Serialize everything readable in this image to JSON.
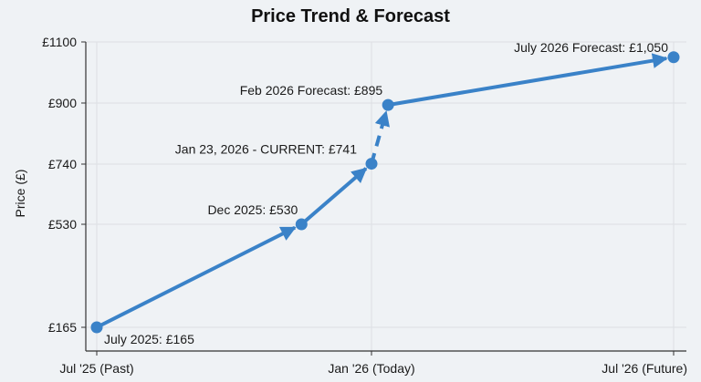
{
  "chart_data": {
    "type": "line",
    "title": "Price Trend & Forecast",
    "xlabel": "",
    "ylabel": "Price (£)",
    "x_ticks": [
      {
        "x": "2025-07",
        "label": "Jul '25 (Past)"
      },
      {
        "x": "2026-01-23",
        "label": "Jan '26 (Today)"
      },
      {
        "x": "2026-07",
        "label": "Jul '26 (Future)"
      }
    ],
    "y_ticks": [
      {
        "y": 165,
        "label": "£165"
      },
      {
        "y": 530,
        "label": "£530"
      },
      {
        "y": 740,
        "label": "£740"
      },
      {
        "y": 900,
        "label": "£900"
      },
      {
        "y": 1100,
        "label": "£1100"
      }
    ],
    "grid": true,
    "color": "#3a82c8",
    "points": [
      {
        "x": "2025-07",
        "y": 165,
        "label": "July 2025: £165",
        "kind": "actual"
      },
      {
        "x": "2025-12",
        "y": 530,
        "label": "Dec 2025: £530",
        "kind": "actual"
      },
      {
        "x": "2026-01-23",
        "y": 741,
        "label": "Jan 23, 2026 - CURRENT: £741",
        "kind": "actual"
      },
      {
        "x": "2026-02",
        "y": 895,
        "label": "Feb 2026 Forecast: £895",
        "kind": "forecast-dashed"
      },
      {
        "x": "2026-07",
        "y": 1050,
        "label": "July 2026 Forecast: £1,050",
        "kind": "forecast"
      }
    ]
  }
}
